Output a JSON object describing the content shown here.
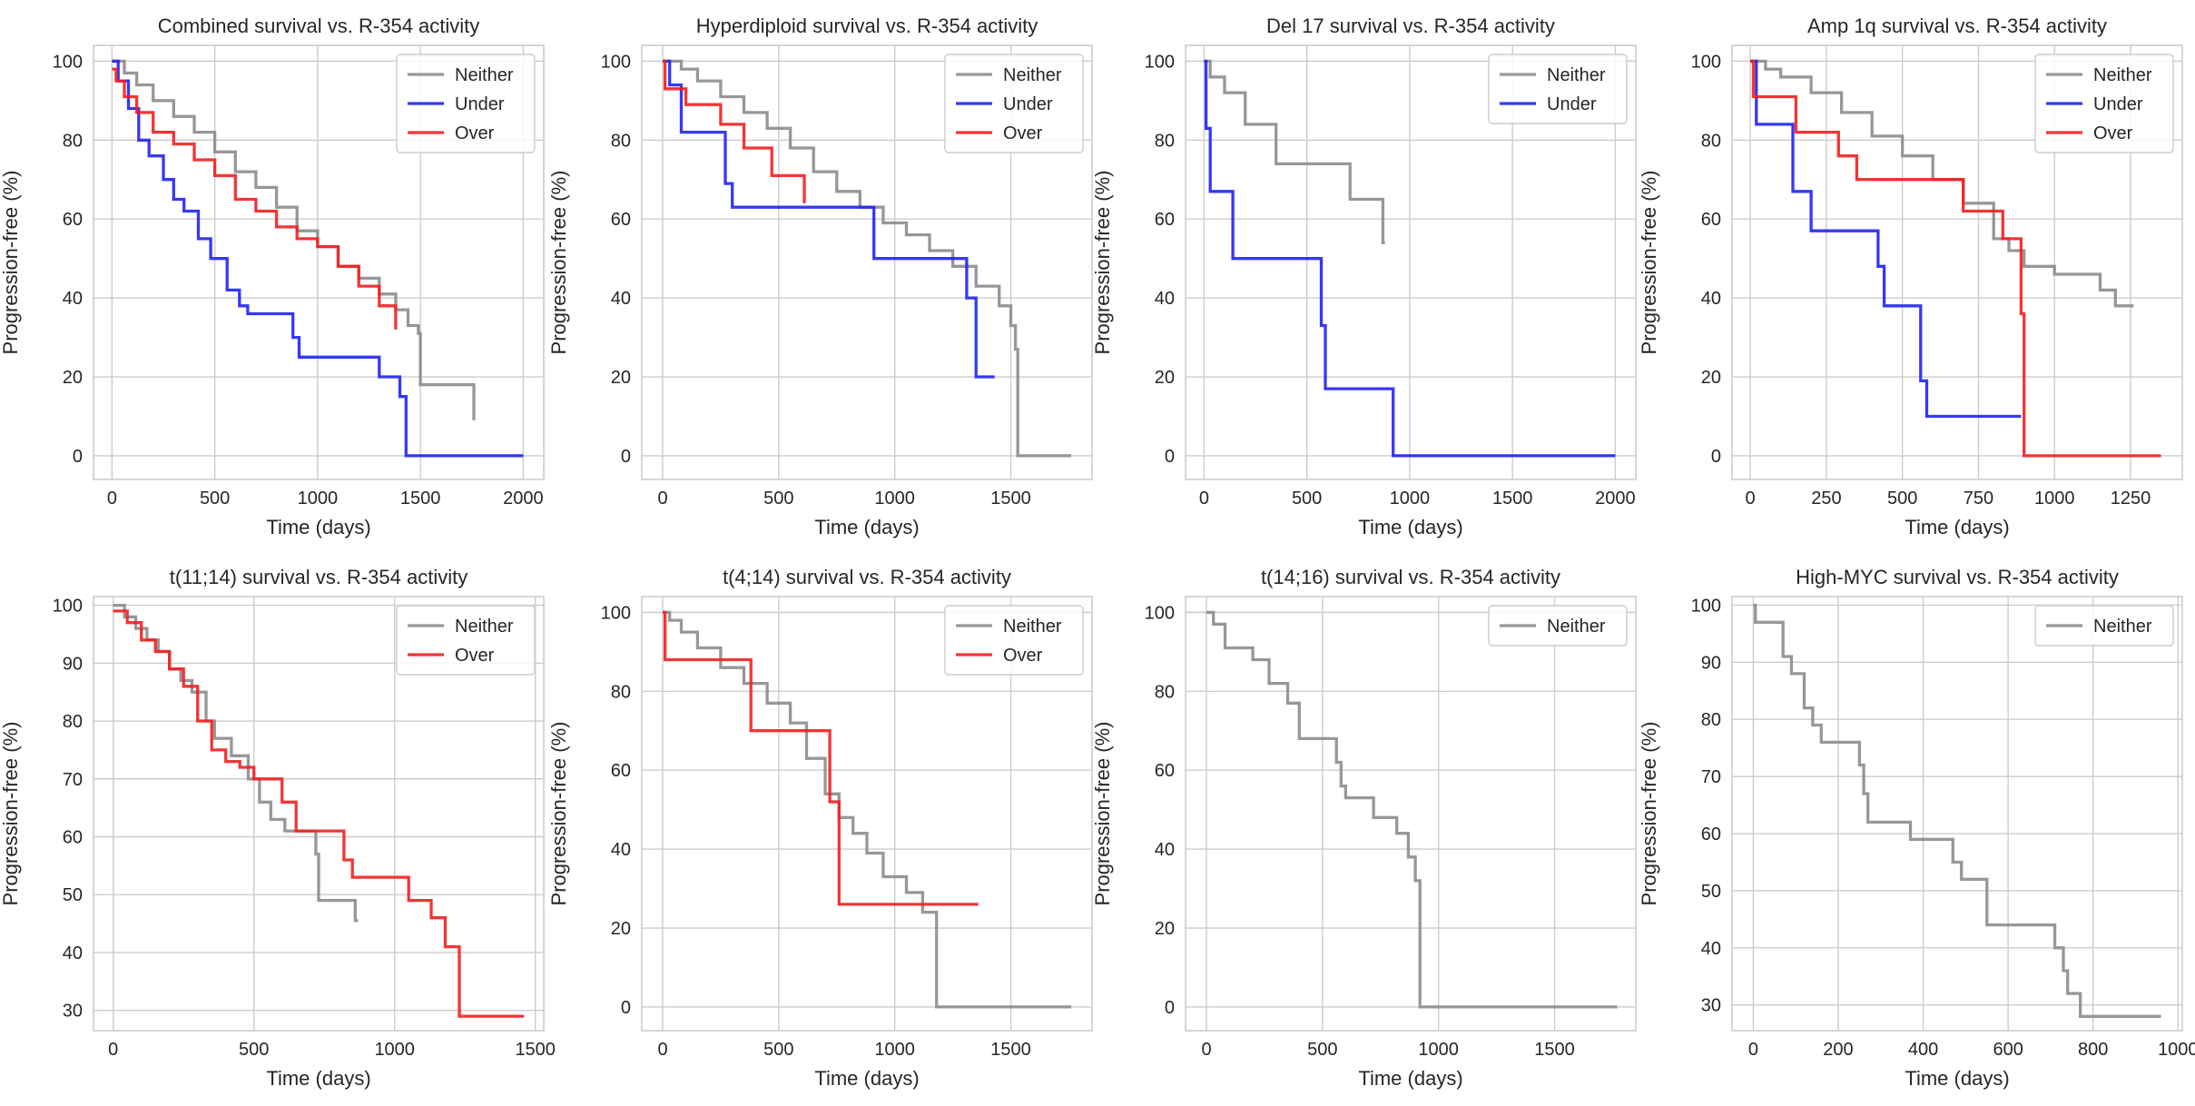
{
  "colors": {
    "Neither": "#8c8c8c",
    "Under": "#1f24f2",
    "Over": "#f21f1f"
  },
  "chart_data": [
    {
      "type": "line",
      "title": "Combined survival vs. R-354 activity",
      "xlabel": "Time (days)",
      "ylabel": "Progression-free (%)",
      "xlim": [
        -90,
        2100
      ],
      "ylim": [
        -6,
        104
      ],
      "xticks": [
        0,
        500,
        1000,
        1500,
        2000
      ],
      "yticks": [
        0,
        20,
        40,
        60,
        80,
        100
      ],
      "grid": true,
      "legend": "top-right",
      "series": [
        {
          "name": "Neither",
          "x": [
            0,
            60,
            120,
            200,
            300,
            400,
            500,
            600,
            700,
            800,
            900,
            1000,
            1100,
            1200,
            1300,
            1380,
            1440,
            1490,
            1500,
            1750,
            1760
          ],
          "y": [
            100,
            97,
            94,
            90,
            86,
            82,
            77,
            72,
            68,
            63,
            57,
            53,
            48,
            45,
            41,
            37,
            33,
            31,
            18,
            18,
            9
          ]
        },
        {
          "name": "Under",
          "x": [
            0,
            30,
            80,
            130,
            180,
            250,
            300,
            350,
            420,
            480,
            560,
            620,
            660,
            880,
            910,
            1300,
            1400,
            1430,
            2000
          ],
          "y": [
            100,
            95,
            88,
            80,
            76,
            70,
            65,
            62,
            55,
            50,
            42,
            38,
            36,
            30,
            25,
            20,
            15,
            0,
            0
          ]
        },
        {
          "name": "Over",
          "x": [
            0,
            20,
            60,
            120,
            200,
            300,
            400,
            500,
            600,
            700,
            800,
            900,
            1000,
            1100,
            1200,
            1300,
            1380
          ],
          "y": [
            98,
            95,
            91,
            87,
            82,
            79,
            75,
            71,
            65,
            62,
            58,
            55,
            53,
            48,
            43,
            38,
            32
          ]
        }
      ]
    },
    {
      "type": "line",
      "title": "Hyperdiploid survival vs. R-354 activity",
      "xlabel": "Time (days)",
      "ylabel": "Progression-free (%)",
      "xlim": [
        -90,
        1850
      ],
      "ylim": [
        -6,
        104
      ],
      "xticks": [
        0,
        500,
        1000,
        1500
      ],
      "yticks": [
        0,
        20,
        40,
        60,
        80,
        100
      ],
      "grid": true,
      "legend": "top-right",
      "series": [
        {
          "name": "Neither",
          "x": [
            0,
            80,
            150,
            250,
            350,
            450,
            550,
            650,
            750,
            850,
            950,
            1050,
            1150,
            1250,
            1350,
            1450,
            1500,
            1520,
            1530,
            1760
          ],
          "y": [
            100,
            98,
            95,
            91,
            87,
            83,
            78,
            72,
            67,
            63,
            59,
            56,
            52,
            48,
            43,
            38,
            33,
            27,
            0,
            0
          ]
        },
        {
          "name": "Under",
          "x": [
            0,
            30,
            80,
            220,
            270,
            300,
            910,
            1310,
            1350,
            1430
          ],
          "y": [
            100,
            94,
            82,
            82,
            69,
            63,
            50,
            40,
            20,
            20
          ]
        },
        {
          "name": "Over",
          "x": [
            0,
            10,
            100,
            250,
            350,
            470,
            610
          ],
          "y": [
            100,
            93,
            89,
            84,
            78,
            71,
            64
          ]
        }
      ]
    },
    {
      "type": "line",
      "title": "Del 17 survival vs. R-354 activity",
      "xlabel": "Time (days)",
      "ylabel": "Progression-free (%)",
      "xlim": [
        -90,
        2100
      ],
      "ylim": [
        -6,
        104
      ],
      "xticks": [
        0,
        500,
        1000,
        1500,
        2000
      ],
      "yticks": [
        0,
        20,
        40,
        60,
        80,
        100
      ],
      "grid": true,
      "legend": "top-right",
      "series": [
        {
          "name": "Neither",
          "x": [
            0,
            30,
            100,
            200,
            350,
            710,
            870,
            880
          ],
          "y": [
            100,
            96,
            92,
            84,
            74,
            65,
            54,
            54
          ]
        },
        {
          "name": "Under",
          "x": [
            0,
            10,
            30,
            140,
            570,
            590,
            920,
            2000
          ],
          "y": [
            100,
            83,
            67,
            50,
            33,
            17,
            0,
            0
          ]
        }
      ]
    },
    {
      "type": "line",
      "title": "Amp 1q survival vs. R-354 activity",
      "xlabel": "Time (days)",
      "ylabel": "Progression-free (%)",
      "xlim": [
        -60,
        1420
      ],
      "ylim": [
        -6,
        104
      ],
      "xticks": [
        0,
        250,
        500,
        750,
        1000,
        1250
      ],
      "yticks": [
        0,
        20,
        40,
        60,
        80,
        100
      ],
      "grid": true,
      "legend": "top-right",
      "series": [
        {
          "name": "Neither",
          "x": [
            0,
            50,
            100,
            200,
            300,
            400,
            500,
            600,
            700,
            800,
            850,
            900,
            1000,
            1150,
            1200,
            1260
          ],
          "y": [
            100,
            98,
            96,
            92,
            87,
            81,
            76,
            70,
            64,
            55,
            52,
            48,
            46,
            42,
            38,
            38
          ]
        },
        {
          "name": "Under",
          "x": [
            0,
            20,
            140,
            200,
            420,
            440,
            560,
            580,
            880,
            890
          ],
          "y": [
            100,
            84,
            67,
            57,
            48,
            38,
            19,
            10,
            10,
            10
          ]
        },
        {
          "name": "Over",
          "x": [
            0,
            10,
            150,
            290,
            350,
            700,
            830,
            890,
            900,
            1350
          ],
          "y": [
            100,
            91,
            82,
            76,
            70,
            62,
            55,
            36,
            0,
            0
          ]
        }
      ]
    },
    {
      "type": "line",
      "title": "t(11;14) survival vs. R-354 activity",
      "xlabel": "Time (days)",
      "ylabel": "Progression-free (%)",
      "xlim": [
        -70,
        1530
      ],
      "ylim": [
        26.5,
        101.5
      ],
      "xticks": [
        0,
        500,
        1000,
        1500
      ],
      "yticks": [
        30,
        40,
        50,
        60,
        70,
        80,
        90,
        100
      ],
      "grid": true,
      "legend": "top-right",
      "series": [
        {
          "name": "Neither",
          "x": [
            0,
            40,
            80,
            120,
            160,
            200,
            240,
            280,
            330,
            360,
            420,
            480,
            520,
            560,
            610,
            720,
            730,
            860,
            870
          ],
          "y": [
            100,
            98,
            96,
            94,
            92,
            89,
            87,
            85,
            80,
            77,
            74,
            70,
            66,
            63,
            61,
            57,
            49,
            45.5,
            45.5
          ]
        },
        {
          "name": "Over",
          "x": [
            0,
            50,
            100,
            150,
            200,
            250,
            300,
            350,
            400,
            450,
            500,
            600,
            650,
            820,
            850,
            1050,
            1130,
            1180,
            1230,
            1460
          ],
          "y": [
            99,
            97,
            94,
            92,
            89,
            86,
            80,
            75,
            73,
            72,
            70,
            66,
            61,
            56,
            53,
            49,
            46,
            41,
            29,
            29
          ]
        }
      ]
    },
    {
      "type": "line",
      "title": "t(4;14) survival vs. R-354 activity",
      "xlabel": "Time (days)",
      "ylabel": "Progression-free (%)",
      "xlim": [
        -90,
        1850
      ],
      "ylim": [
        -6,
        104
      ],
      "xticks": [
        0,
        500,
        1000,
        1500
      ],
      "yticks": [
        0,
        20,
        40,
        60,
        80,
        100
      ],
      "grid": true,
      "legend": "top-right",
      "series": [
        {
          "name": "Neither",
          "x": [
            0,
            30,
            80,
            150,
            250,
            350,
            450,
            550,
            620,
            700,
            760,
            820,
            880,
            950,
            1050,
            1120,
            1180,
            1760
          ],
          "y": [
            100,
            98,
            95,
            91,
            86,
            82,
            77,
            72,
            63,
            54,
            48,
            44,
            39,
            33,
            29,
            24,
            0,
            0
          ]
        },
        {
          "name": "Over",
          "x": [
            0,
            10,
            380,
            720,
            740,
            760,
            1360
          ],
          "y": [
            100,
            88,
            70,
            52,
            52,
            26,
            26
          ]
        }
      ]
    },
    {
      "type": "line",
      "title": "t(14;16) survival vs. R-354 activity",
      "xlabel": "Time (days)",
      "ylabel": "Progression-free (%)",
      "xlim": [
        -90,
        1850
      ],
      "ylim": [
        -6,
        104
      ],
      "xticks": [
        0,
        500,
        1000,
        1500
      ],
      "yticks": [
        0,
        20,
        40,
        60,
        80,
        100
      ],
      "grid": true,
      "legend": "top-right",
      "series": [
        {
          "name": "Neither",
          "x": [
            0,
            30,
            80,
            200,
            270,
            350,
            400,
            560,
            580,
            600,
            720,
            820,
            870,
            900,
            920,
            1770
          ],
          "y": [
            100,
            97,
            91,
            88,
            82,
            77,
            68,
            62,
            56,
            53,
            48,
            44,
            38,
            32,
            0,
            0
          ]
        }
      ]
    },
    {
      "type": "line",
      "title": "High-MYC survival vs. R-354 activity",
      "xlabel": "Time (days)",
      "ylabel": "Progression-free (%)",
      "xlim": [
        -50,
        1010
      ],
      "ylim": [
        25.5,
        101.5
      ],
      "xticks": [
        0,
        200,
        400,
        600,
        800,
        1000
      ],
      "yticks": [
        30,
        40,
        50,
        60,
        70,
        80,
        90,
        100
      ],
      "grid": true,
      "legend": "top-right",
      "series": [
        {
          "name": "Neither",
          "x": [
            0,
            5,
            70,
            90,
            120,
            140,
            160,
            250,
            260,
            270,
            370,
            470,
            490,
            550,
            710,
            730,
            740,
            770,
            960
          ],
          "y": [
            100,
            97,
            91,
            88,
            82,
            79,
            76,
            72,
            67,
            62,
            59,
            55,
            52,
            44,
            40,
            36,
            32,
            28,
            28
          ]
        }
      ]
    }
  ]
}
